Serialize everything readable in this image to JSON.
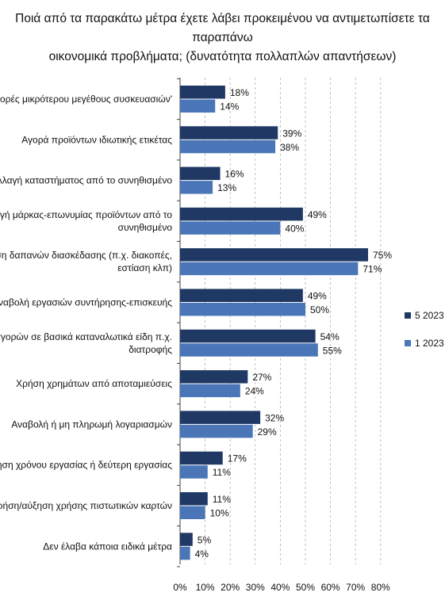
{
  "chart_data": {
    "type": "bar",
    "orientation": "horizontal",
    "title": [
      "Ποιά από τα παρακάτω μέτρα έχετε λάβει προκειμένου να αντιμετωπίσετε τα παραπάνω",
      "οικονομικά προβλήματα; (δυνατότητα πολλαπλών απαντήσεων)"
    ],
    "categories": [
      [
        "Αγορές μικρότερου μεγέθους συσκευασιών'"
      ],
      [
        "Αγορά προϊόντων ιδιωτικής ετικέτας"
      ],
      [
        "Αλλαγή καταστήματος από το συνηθισμένο"
      ],
      [
        "Αλλαγή μάρκας-επωνυμίας προϊόντων από το",
        "συνηθισμένο"
      ],
      [
        "Ακύρωση δαπανών διασκέδασης (π.χ. διακοπές,",
        "εστίαση κλπ)"
      ],
      [
        "Αναβολή εργασιών συντήρησης-επισκευής"
      ],
      [
        "Μείωση αγορών σε βασικά καταναλωτικά είδη π.χ.",
        "διατροφής"
      ],
      [
        "Χρήση χρημάτων από αποταμιεύσεις"
      ],
      [
        "Αναβολή ή μη πληρωμή λογαριασμών"
      ],
      [
        "Αύξηση χρόνου εργασίας ή δεύτερη εργασίας"
      ],
      [
        "Χρήση/αύξηση χρήσης πιστωτικών καρτών"
      ],
      [
        "Δεν έλαβα κάποια ειδικά μέτρα"
      ]
    ],
    "series": [
      {
        "name": "5 2023",
        "color": "#1f3864",
        "values": [
          18,
          39,
          16,
          49,
          75,
          49,
          54,
          27,
          32,
          17,
          11,
          5
        ]
      },
      {
        "name": "1 2023",
        "color": "#4a76b8",
        "values": [
          14,
          38,
          13,
          40,
          71,
          50,
          55,
          24,
          29,
          11,
          10,
          4
        ]
      }
    ],
    "value_suffix": "%",
    "x_ticks": [
      "0%",
      "10%",
      "20%",
      "30%",
      "40%",
      "50%",
      "60%",
      "70%",
      "80%"
    ],
    "xlim": [
      0,
      80
    ],
    "grid": true,
    "legend_position": "right"
  }
}
